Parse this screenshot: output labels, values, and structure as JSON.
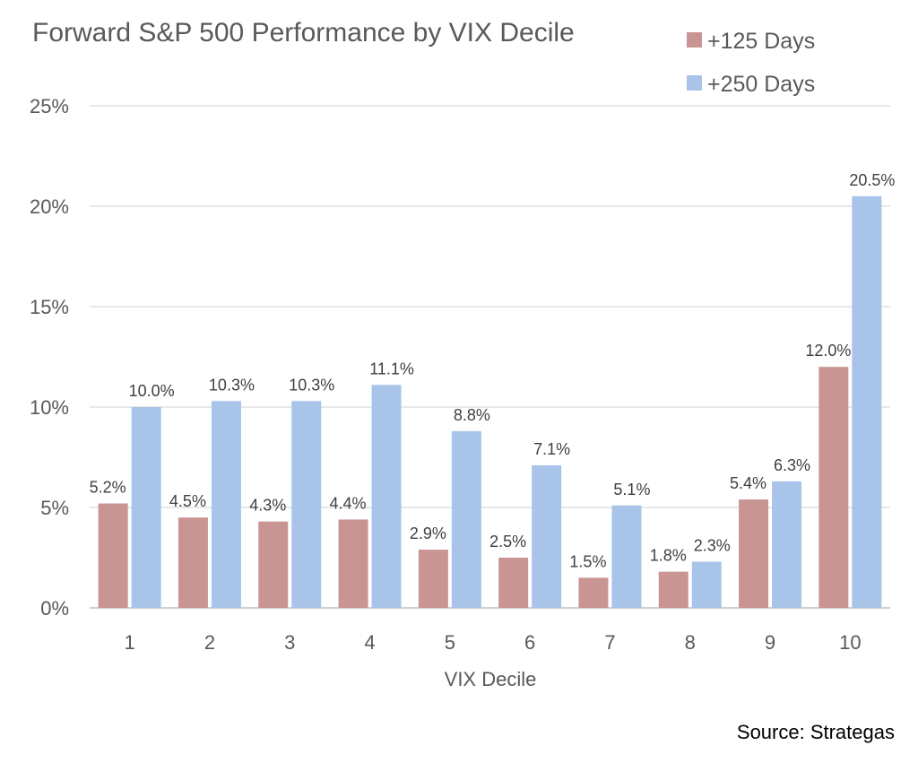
{
  "chart_data": {
    "type": "bar",
    "title": "Forward S&P 500 Performance by VIX Decile",
    "xlabel": "VIX Decile",
    "ylabel": "",
    "categories": [
      "1",
      "2",
      "3",
      "4",
      "5",
      "6",
      "7",
      "8",
      "9",
      "10"
    ],
    "series": [
      {
        "name": "+125 Days",
        "color": "#c99593",
        "values": [
          5.2,
          4.5,
          4.3,
          4.4,
          2.9,
          2.5,
          1.5,
          1.8,
          5.4,
          12.0
        ],
        "labels": [
          "5.2%",
          "4.5%",
          "4.3%",
          "4.4%",
          "2.9%",
          "2.5%",
          "1.5%",
          "1.8%",
          "5.4%",
          "12.0%"
        ]
      },
      {
        "name": "+250 Days",
        "color": "#a9c4e9",
        "values": [
          10.0,
          10.3,
          10.3,
          11.1,
          8.8,
          7.1,
          5.1,
          2.3,
          6.3,
          20.5
        ],
        "labels": [
          "10.0%",
          "10.3%",
          "10.3%",
          "11.1%",
          "8.8%",
          "7.1%",
          "5.1%",
          "2.3%",
          "6.3%",
          "20.5%"
        ]
      }
    ],
    "ylim": [
      0,
      25
    ],
    "yticks": [
      0,
      5,
      10,
      15,
      20,
      25
    ],
    "ytick_labels": [
      "0%",
      "5%",
      "10%",
      "15%",
      "20%",
      "25%"
    ],
    "grid": true,
    "legend_position": "top-right",
    "source": "Source: Strategas"
  }
}
